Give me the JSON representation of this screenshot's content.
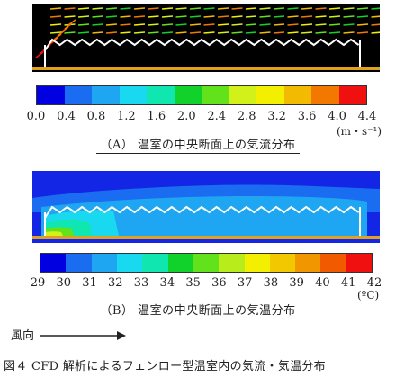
{
  "panel_a": {
    "colorbar": {
      "ticks": [
        "0.0",
        "0.4",
        "0.8",
        "1.2",
        "1.6",
        "2.0",
        "2.4",
        "2.8",
        "3.2",
        "3.6",
        "4.0",
        "4.4"
      ],
      "colors": [
        "#0000e0",
        "#1a6cf0",
        "#1fa6f2",
        "#18d9f0",
        "#10e6b0",
        "#10d22a",
        "#62e21a",
        "#d2f01a",
        "#f2f000",
        "#f2ba00",
        "#f27800",
        "#f01010"
      ],
      "unit": "(m・s⁻¹)"
    },
    "caption": "（A） 温室の中央断面上の気流分布"
  },
  "panel_b": {
    "colorbar": {
      "ticks": [
        "29",
        "30",
        "31",
        "32",
        "33",
        "34",
        "35",
        "36",
        "37",
        "38",
        "39",
        "40",
        "41",
        "42"
      ],
      "colors": [
        "#0000e0",
        "#1a6cf0",
        "#1fa6f2",
        "#18d9f0",
        "#10e6b0",
        "#10d22a",
        "#62e21a",
        "#b8ec1a",
        "#f2f000",
        "#f2c800",
        "#f29600",
        "#f25a00",
        "#f01010"
      ],
      "unit": "(ºC)"
    },
    "caption": "（B） 温室の中央断面上の気温分布"
  },
  "wind_label": "風向",
  "figure_caption": "図４ CFD 解析によるフェンロー型温室内の気流・気温分布"
}
